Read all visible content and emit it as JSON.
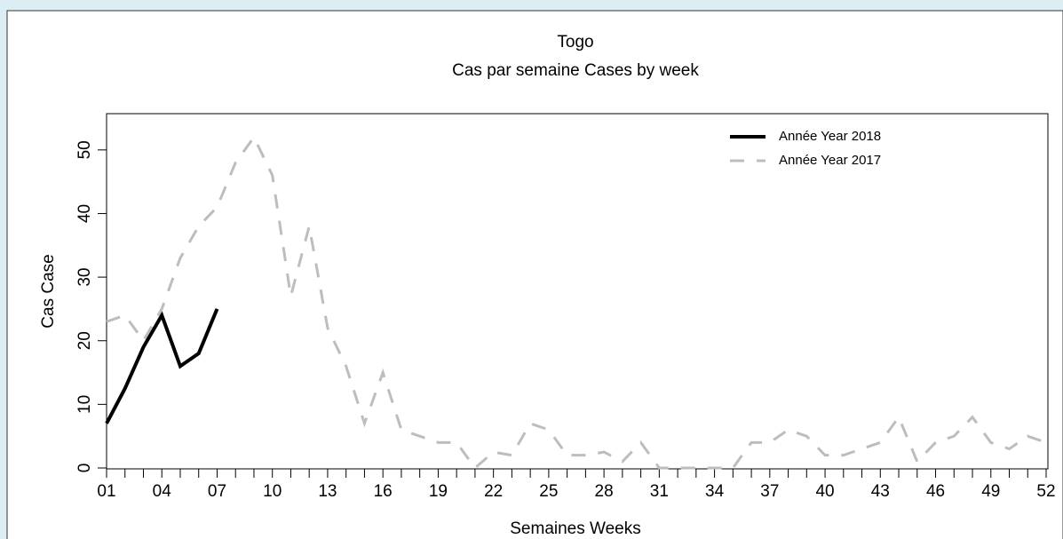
{
  "chart_data": {
    "type": "line",
    "title": "Togo",
    "subtitle": "Cas par semaine Cases by week",
    "x_label": "Semaines Weeks",
    "y_label": "Cas Case",
    "categories": [
      "01",
      null,
      null,
      "04",
      null,
      null,
      "07",
      null,
      null,
      "10",
      null,
      null,
      "13",
      null,
      null,
      "16",
      null,
      null,
      "19",
      null,
      null,
      "22",
      null,
      null,
      "25",
      null,
      null,
      "28",
      null,
      null,
      "31",
      null,
      null,
      "34",
      null,
      null,
      "37",
      null,
      null,
      "40",
      null,
      null,
      "43",
      null,
      null,
      "46",
      null,
      null,
      "49",
      null,
      null,
      "52"
    ],
    "ylim": [
      0,
      55.7
    ],
    "yticks": [
      0,
      10,
      20,
      30,
      40,
      50
    ],
    "legend": "top-right",
    "series": [
      {
        "name": "Année Year 2018",
        "color": "#000000",
        "dash": "solid",
        "values": [
          7,
          12.5,
          19,
          24,
          16,
          18,
          25,
          null,
          null,
          null,
          null,
          null,
          null,
          null,
          null,
          null,
          null,
          null,
          null,
          null,
          null,
          null,
          null,
          null,
          null,
          null,
          null,
          null,
          null,
          null,
          null,
          null,
          null,
          null,
          null,
          null,
          null,
          null,
          null,
          null,
          null,
          null,
          null,
          null,
          null,
          null,
          null,
          null,
          null,
          null,
          null,
          null
        ]
      },
      {
        "name": "Année Year 2017",
        "color": "#bdbdbd",
        "dash": "dashed",
        "values": [
          23,
          24,
          20,
          25,
          33,
          38,
          41,
          48,
          52,
          46,
          27,
          38,
          22,
          16,
          7,
          15,
          6,
          5,
          4,
          4,
          0,
          2.5,
          2,
          7,
          6,
          2,
          2,
          2.5,
          1,
          4,
          0,
          0,
          0,
          0,
          0,
          4,
          4,
          6,
          5,
          2,
          2,
          3,
          4,
          8,
          1,
          4,
          5,
          8,
          4,
          3,
          5,
          4
        ]
      }
    ]
  }
}
